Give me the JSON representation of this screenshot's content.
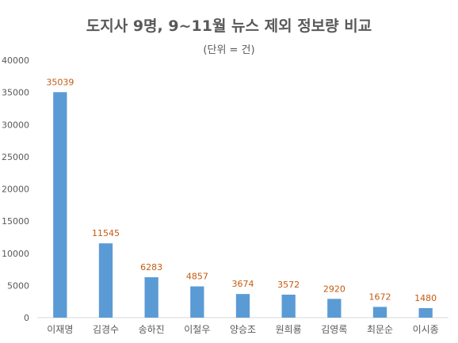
{
  "chart_data": {
    "type": "bar",
    "title": "도지사 9명, 9~11월 뉴스 제외 정보량 비교",
    "subtitle": "(단위 = 건)",
    "categories": [
      "이재명",
      "김경수",
      "송하진",
      "이철우",
      "양승조",
      "원희룡",
      "김영록",
      "최문순",
      "이시종"
    ],
    "values": [
      35039,
      11545,
      6283,
      4857,
      3674,
      3572,
      2920,
      1672,
      1480
    ],
    "ylim": [
      0,
      40000
    ],
    "yticks": [
      0,
      5000,
      10000,
      15000,
      20000,
      25000,
      30000,
      35000,
      40000
    ],
    "grid": false,
    "bar_color": "#5b9bd5",
    "label_color": "#c55a11"
  }
}
